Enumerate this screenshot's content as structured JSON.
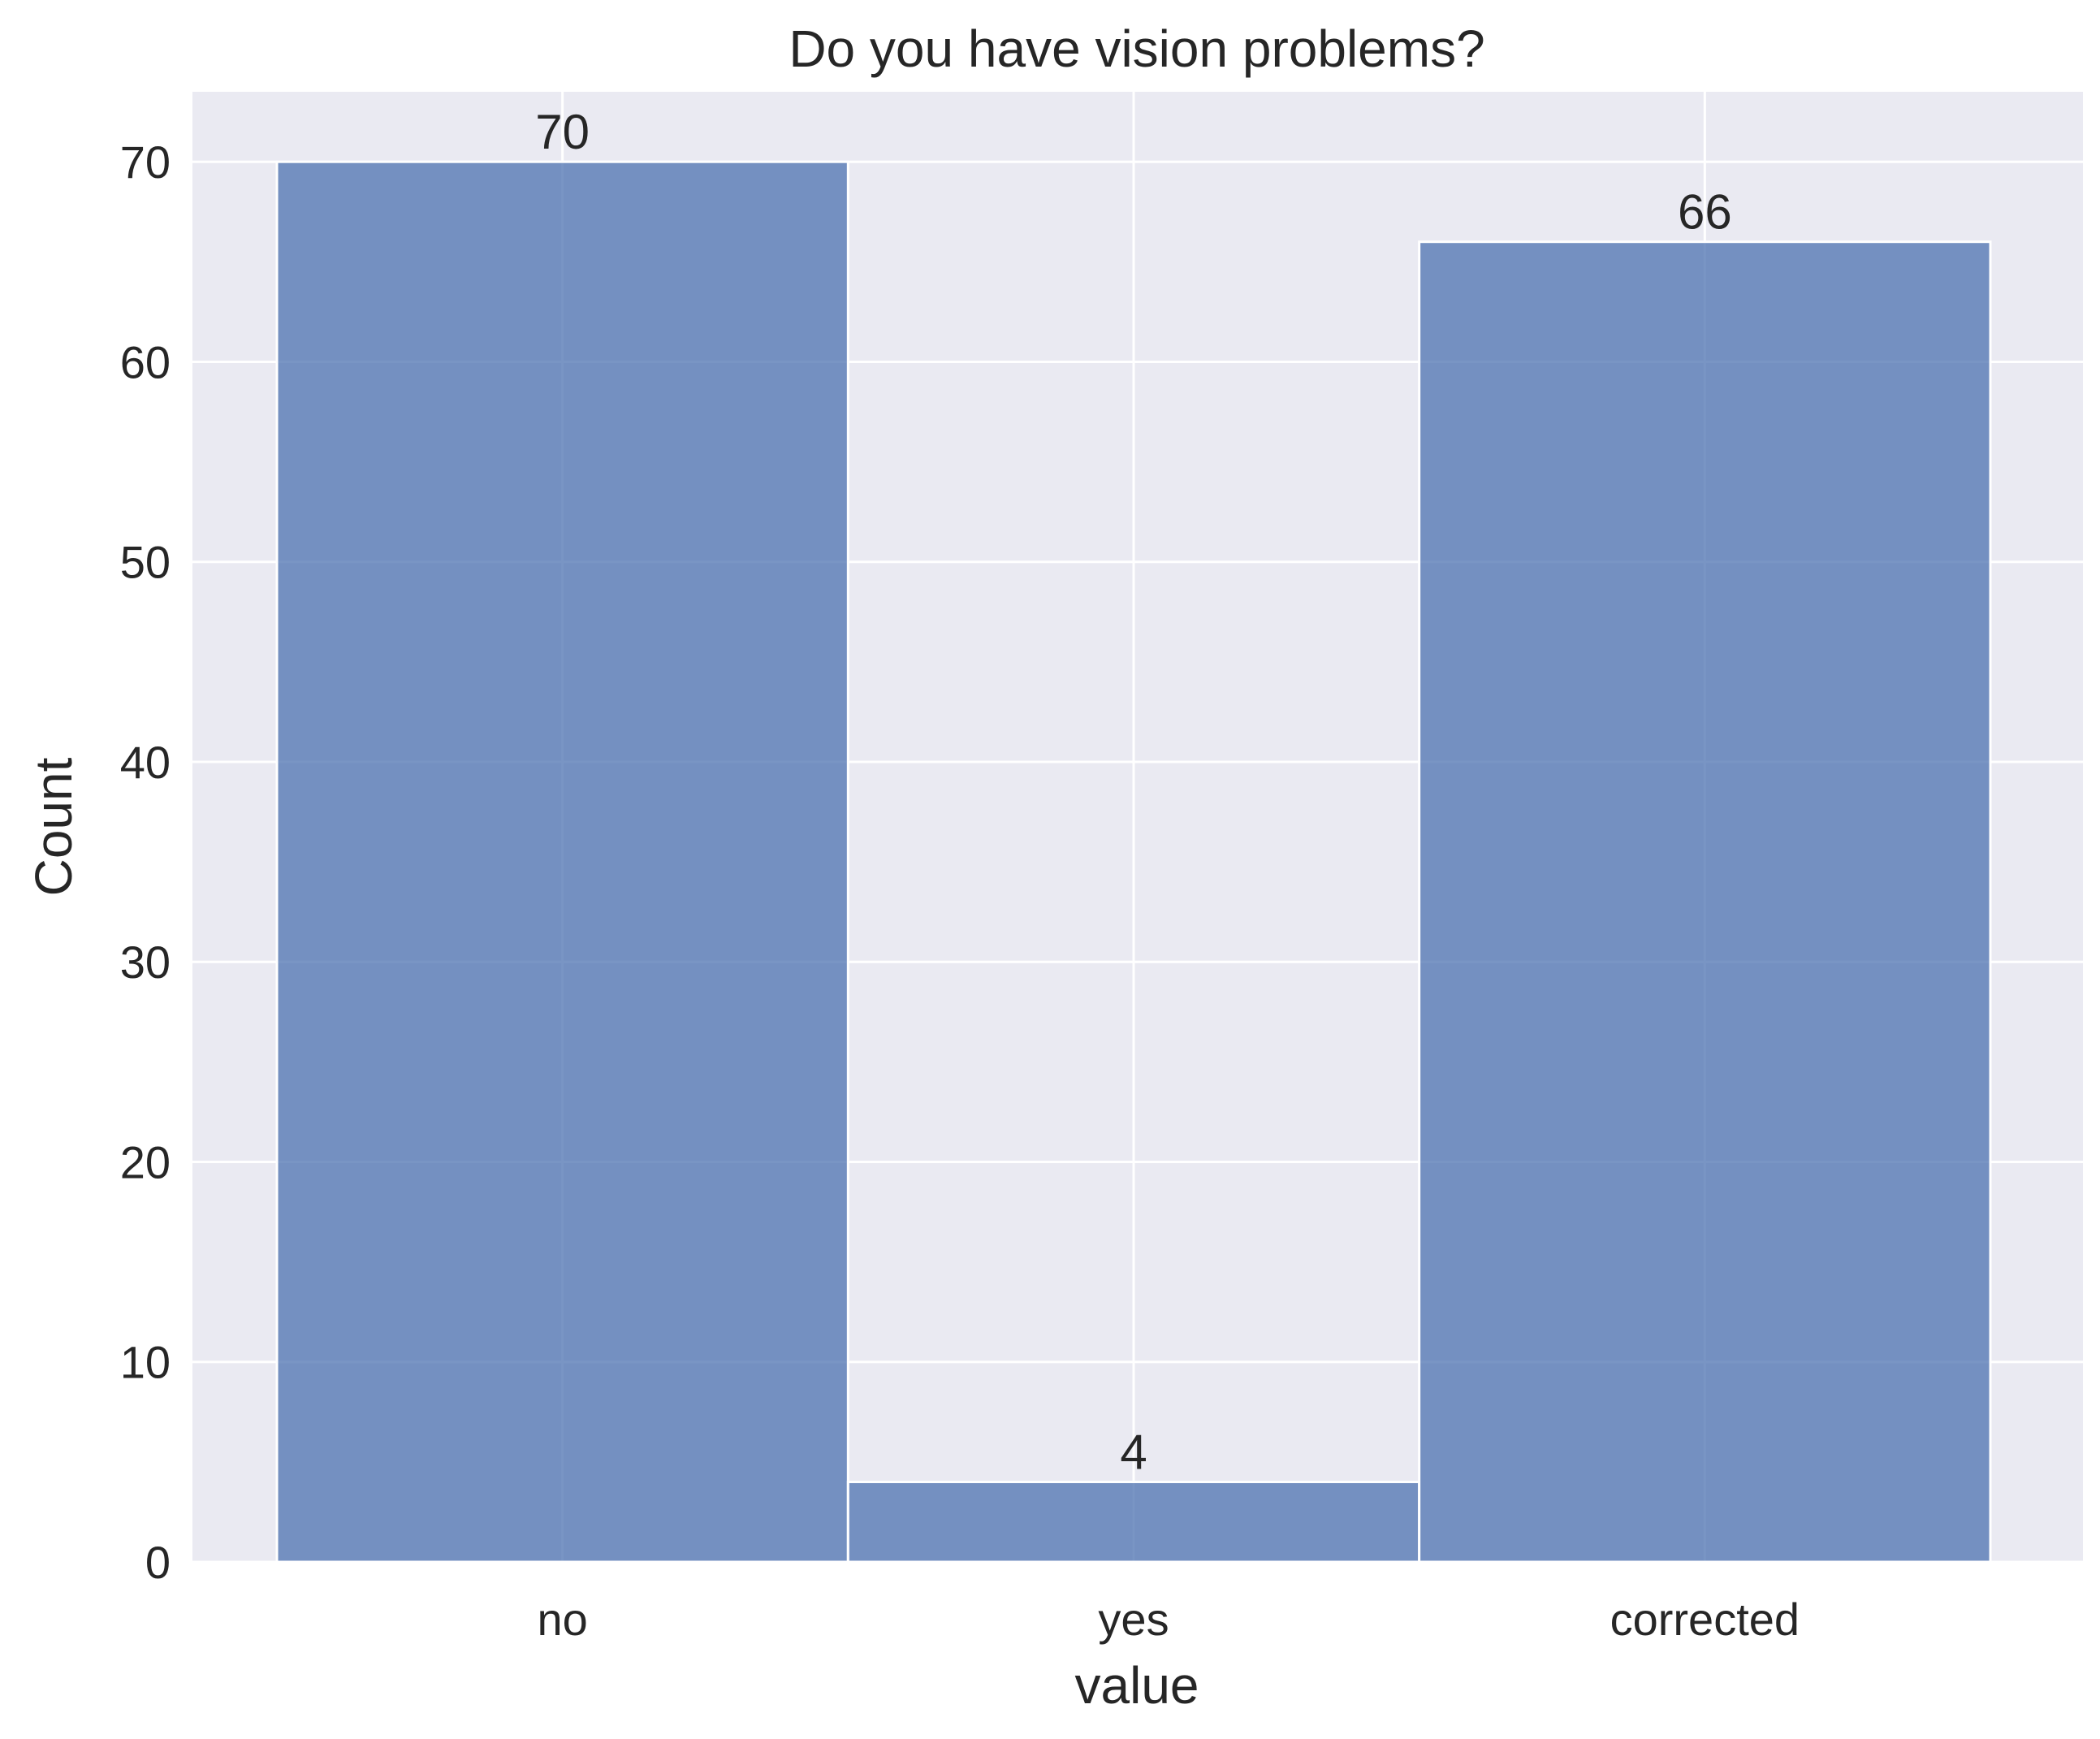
{
  "chart_data": {
    "type": "bar",
    "title": "Do you have vision problems?",
    "xlabel": "value",
    "ylabel": "Count",
    "categories": [
      "no",
      "yes",
      "corrected"
    ],
    "values": [
      70,
      4,
      66
    ],
    "data_labels": [
      "70",
      "4",
      "66"
    ],
    "ylim": [
      0,
      73.5
    ],
    "yticks": [
      0,
      10,
      20,
      30,
      40,
      50,
      60,
      70
    ],
    "grid": true,
    "colors": {
      "bar": "#4c72b0",
      "background": "#eaeaf2",
      "grid": "#ffffff",
      "text": "#262626"
    }
  }
}
